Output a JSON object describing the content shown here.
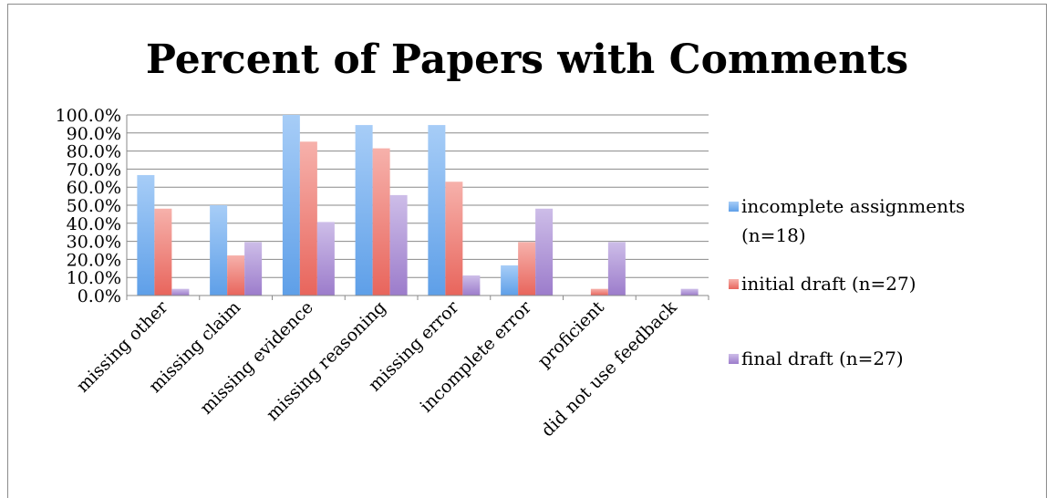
{
  "chart_data": {
    "type": "bar",
    "title": "Percent of Papers with Comments",
    "xlabel": "",
    "ylabel": "",
    "ylim": [
      0,
      100
    ],
    "grid": true,
    "legend_position": "right",
    "y_tick_labels": [
      "0.0%",
      "10.0%",
      "20.0%",
      "30.0%",
      "40.0%",
      "50.0%",
      "60.0%",
      "70.0%",
      "80.0%",
      "90.0%",
      "100.0%"
    ],
    "categories": [
      "missing other",
      "missing claim",
      "missing evidence",
      "missing reasoning",
      "missing error",
      "incomplete error",
      "proficient",
      "did not use feedback"
    ],
    "series": [
      {
        "name": "incomplete assignments (n=18)",
        "legend_lines": [
          "incomplete assignments",
          "(n=18)"
        ],
        "color": "#6ea9ea",
        "values": [
          66.7,
          50.0,
          100.0,
          94.4,
          94.4,
          16.7,
          0.0,
          0.0
        ]
      },
      {
        "name": "initial draft (n=27)",
        "legend_lines": [
          "initial draft (n=27)"
        ],
        "color": "#ec7a72",
        "values": [
          48.1,
          22.2,
          85.2,
          81.5,
          63.0,
          29.6,
          3.7,
          0.0
        ]
      },
      {
        "name": "final draft (n=27)",
        "legend_lines": [
          "final draft (n=27)"
        ],
        "color": "#a98ad2",
        "values": [
          3.7,
          29.6,
          40.7,
          55.6,
          11.1,
          48.1,
          29.6,
          3.7
        ]
      }
    ]
  }
}
